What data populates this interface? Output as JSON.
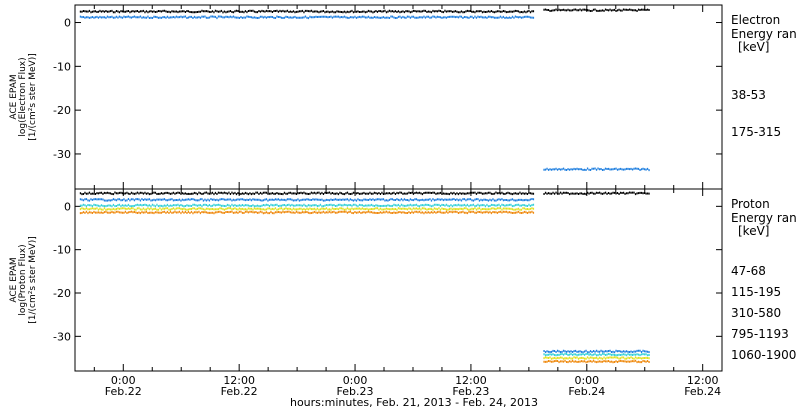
{
  "chart_data": [
    {
      "type": "scatter",
      "panel": "electron",
      "ylabel_lines": [
        "ACE EPAM",
        "log(Electron Flux)",
        "[1/(cm²s ster MeV)]"
      ],
      "ylim": [
        -38,
        4
      ],
      "yticks": [
        0,
        -10,
        -20,
        -30
      ],
      "xlim_hours": [
        -5,
        62
      ],
      "legend": {
        "title": "Electron",
        "subtitle": "Energy ran",
        "unit": "[keV]",
        "entries": [
          {
            "label": "38-53",
            "color": "#000000"
          },
          {
            "label": "175-315",
            "color": "#1f7fdf"
          }
        ]
      },
      "series": [
        {
          "label": "38-53",
          "color": "#000000",
          "segments": [
            {
              "x": [
                -4.5,
                42.5
              ],
              "y": 2.5
            },
            {
              "x": [
                43.5,
                54.5
              ],
              "y": 2.8
            }
          ]
        },
        {
          "label": "175-315",
          "color": "#1f7fdf",
          "segments": [
            {
              "x": [
                -4.5,
                42.5
              ],
              "y": 1.2
            },
            {
              "x": [
                43.5,
                54.5
              ],
              "y": -33.5
            }
          ]
        }
      ]
    },
    {
      "type": "scatter",
      "panel": "proton",
      "ylabel_lines": [
        "ACE EPAM",
        "log(Proton Flux)",
        "[1/(cm²s ster MeV)]"
      ],
      "ylim": [
        -38,
        4
      ],
      "yticks": [
        0,
        -10,
        -20,
        -30
      ],
      "xlim_hours": [
        -5,
        62
      ],
      "legend": {
        "title": "Proton",
        "subtitle": "Energy ran",
        "unit": "[keV]",
        "entries": [
          {
            "label": "47-68",
            "color": "#000000"
          },
          {
            "label": "115-195",
            "color": "#1f7fdf"
          },
          {
            "label": "310-580",
            "color": "#36d0d8"
          },
          {
            "label": "795-1193",
            "color": "#e0e020"
          },
          {
            "label": "1060-1900",
            "color": "#ef8a10"
          }
        ]
      },
      "series": [
        {
          "label": "47-68",
          "color": "#000000",
          "segments": [
            {
              "x": [
                -4.5,
                42.5
              ],
              "y": 3.0
            },
            {
              "x": [
                43.5,
                54.5
              ],
              "y": 3.0
            }
          ]
        },
        {
          "label": "115-195",
          "color": "#1f7fdf",
          "segments": [
            {
              "x": [
                -4.5,
                42.5
              ],
              "y": 1.5
            },
            {
              "x": [
                43.5,
                54.5
              ],
              "y": -33.5
            }
          ]
        },
        {
          "label": "310-580",
          "color": "#36d0d8",
          "segments": [
            {
              "x": [
                -4.5,
                42.5
              ],
              "y": 0.2
            },
            {
              "x": [
                43.5,
                54.5
              ],
              "y": -34.2
            }
          ]
        },
        {
          "label": "795-1193",
          "color": "#e0e020",
          "segments": [
            {
              "x": [
                -4.5,
                42.5
              ],
              "y": -0.6
            },
            {
              "x": [
                43.5,
                54.5
              ],
              "y": -35.0
            }
          ]
        },
        {
          "label": "1060-1900",
          "color": "#ef8a10",
          "segments": [
            {
              "x": [
                -4.5,
                42.5
              ],
              "y": -1.4
            },
            {
              "x": [
                43.5,
                54.5
              ],
              "y": -35.8
            }
          ]
        }
      ]
    }
  ],
  "x_axis": {
    "ticks": [
      {
        "hour": 0,
        "time": "0:00",
        "date": "Feb.22"
      },
      {
        "hour": 12,
        "time": "12:00",
        "date": "Feb.22"
      },
      {
        "hour": 24,
        "time": "0:00",
        "date": "Feb.23"
      },
      {
        "hour": 36,
        "time": "12:00",
        "date": "Feb.23"
      },
      {
        "hour": 48,
        "time": "0:00",
        "date": "Feb.24"
      },
      {
        "hour": 60,
        "time": "12:00",
        "date": "Feb.24"
      }
    ],
    "title": "hours:minutes, Feb. 21, 2013 - Feb. 24, 2013"
  }
}
